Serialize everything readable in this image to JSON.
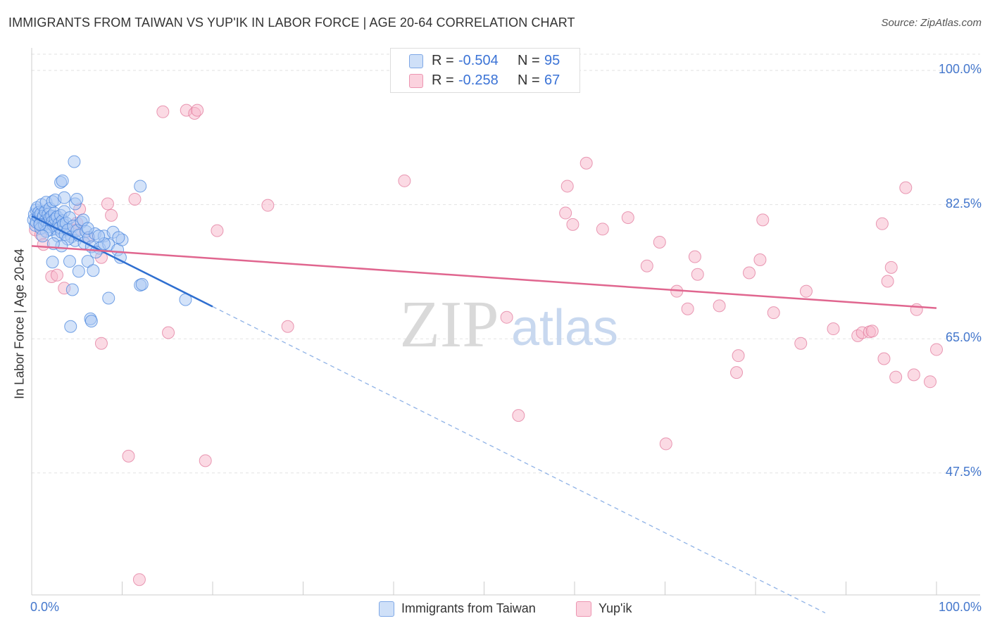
{
  "title": "IMMIGRANTS FROM TAIWAN VS YUP'IK IN LABOR FORCE | AGE 20-64 CORRELATION CHART",
  "source": "Source: ZipAtlas.com",
  "watermark": {
    "zip": "ZIP",
    "atlas": "atlas"
  },
  "stats": [
    {
      "r_label": "R =",
      "r": "-0.504",
      "n_label": "N =",
      "n": "95",
      "color": "#a9c8f3"
    },
    {
      "r_label": "R =",
      "r": "-0.258",
      "n_label": "N =",
      "n": "67",
      "color": "#f7b6c9"
    }
  ],
  "legend": [
    {
      "label": "Immigrants from Taiwan",
      "color": "#a9c8f3"
    },
    {
      "label": "Yup'ik",
      "color": "#f7b6c9"
    }
  ],
  "chart_data": {
    "type": "scatter",
    "title": "IMMIGRANTS FROM TAIWAN VS YUP'IK IN LABOR FORCE | AGE 20-64 CORRELATION CHART",
    "xlabel": "",
    "ylabel": "In Labor Force | Age 20-64",
    "xlim": [
      0,
      100
    ],
    "ylim": [
      31.6,
      102.2
    ],
    "x_tick_labels": [
      "0.0%",
      "100.0%"
    ],
    "y_ticks": [
      {
        "value": 100.0,
        "label": "100.0%"
      },
      {
        "value": 82.5,
        "label": "82.5%"
      },
      {
        "value": 65.0,
        "label": "65.0%"
      },
      {
        "value": 47.5,
        "label": "47.5%"
      }
    ],
    "grid": "horizontal dashed",
    "series": [
      {
        "name": "Immigrants from Taiwan",
        "color": "#a9c8f3",
        "stroke": "#4a86de",
        "trend": {
          "x0": 0,
          "y0": 81.0,
          "x1": 20,
          "y1": 69.2,
          "dashed_to_x": 87.7
        },
        "points": [
          [
            0.2,
            80.5
          ],
          [
            0.3,
            81.2
          ],
          [
            0.4,
            79.8
          ],
          [
            0.5,
            81.8
          ],
          [
            0.5,
            80.2
          ],
          [
            0.6,
            82.1
          ],
          [
            0.7,
            80.9
          ],
          [
            0.8,
            81.5
          ],
          [
            0.9,
            80.0
          ],
          [
            1.0,
            81.3
          ],
          [
            1.0,
            79.4
          ],
          [
            1.1,
            82.5
          ],
          [
            1.2,
            80.7
          ],
          [
            1.3,
            81.0
          ],
          [
            1.4,
            79.9
          ],
          [
            1.5,
            81.6
          ],
          [
            1.5,
            80.4
          ],
          [
            1.6,
            82.8
          ],
          [
            1.7,
            80.1
          ],
          [
            1.8,
            81.2
          ],
          [
            1.9,
            79.6
          ],
          [
            2.0,
            80.8
          ],
          [
            2.0,
            82.0
          ],
          [
            2.1,
            79.2
          ],
          [
            2.2,
            81.0
          ],
          [
            2.3,
            80.3
          ],
          [
            2.4,
            79.8
          ],
          [
            2.5,
            81.4
          ],
          [
            2.6,
            80.6
          ],
          [
            2.7,
            79.3
          ],
          [
            2.8,
            80.9
          ],
          [
            2.9,
            78.4
          ],
          [
            3.0,
            80.0
          ],
          [
            3.1,
            79.5
          ],
          [
            3.2,
            81.1
          ],
          [
            3.3,
            78.9
          ],
          [
            3.4,
            80.4
          ],
          [
            3.5,
            79.9
          ],
          [
            3.6,
            81.6
          ],
          [
            3.7,
            78.6
          ],
          [
            3.8,
            80.1
          ],
          [
            4.0,
            79.2
          ],
          [
            4.2,
            80.8
          ],
          [
            4.4,
            78.3
          ],
          [
            4.6,
            79.7
          ],
          [
            4.8,
            77.8
          ],
          [
            5.0,
            79.1
          ],
          [
            5.2,
            78.5
          ],
          [
            5.5,
            80.2
          ],
          [
            5.8,
            77.5
          ],
          [
            6.0,
            79.0
          ],
          [
            6.3,
            78.2
          ],
          [
            6.6,
            77.0
          ],
          [
            7.0,
            78.7
          ],
          [
            7.5,
            76.8
          ],
          [
            8.0,
            78.4
          ],
          [
            8.5,
            77.3
          ],
          [
            9.0,
            78.9
          ],
          [
            9.5,
            76.6
          ],
          [
            10.0,
            77.9
          ],
          [
            2.3,
            82.9
          ],
          [
            2.6,
            83.1
          ],
          [
            3.2,
            85.4
          ],
          [
            3.4,
            85.6
          ],
          [
            4.7,
            88.1
          ],
          [
            12.0,
            84.9
          ],
          [
            3.6,
            83.4
          ],
          [
            4.8,
            82.6
          ],
          [
            5.0,
            83.2
          ],
          [
            5.7,
            80.5
          ],
          [
            6.2,
            79.4
          ],
          [
            2.3,
            75.0
          ],
          [
            4.2,
            75.1
          ],
          [
            5.2,
            73.8
          ],
          [
            6.2,
            75.1
          ],
          [
            6.8,
            73.9
          ],
          [
            4.5,
            71.4
          ],
          [
            8.5,
            70.3
          ],
          [
            12.0,
            72.0
          ],
          [
            12.2,
            72.1
          ],
          [
            17.0,
            70.1
          ],
          [
            6.5,
            67.6
          ],
          [
            6.6,
            67.3
          ],
          [
            4.3,
            66.6
          ],
          [
            9.6,
            78.2
          ],
          [
            9.8,
            75.6
          ],
          [
            7.1,
            76.3
          ],
          [
            8.0,
            77.4
          ],
          [
            4.0,
            78.0
          ],
          [
            3.3,
            77.1
          ],
          [
            2.4,
            77.4
          ],
          [
            1.6,
            79.0
          ],
          [
            1.2,
            78.4
          ],
          [
            0.9,
            79.9
          ],
          [
            7.4,
            78.4
          ]
        ]
      },
      {
        "name": "Yup'ik",
        "color": "#f7b6c9",
        "stroke": "#e27a9c",
        "trend": {
          "x0": 0,
          "y0": 77.1,
          "x1": 100,
          "y1": 69.0
        },
        "points": [
          [
            0.4,
            79.2
          ],
          [
            1.0,
            78.6
          ],
          [
            1.3,
            77.3
          ],
          [
            2.2,
            73.1
          ],
          [
            2.8,
            73.3
          ],
          [
            3.6,
            71.6
          ],
          [
            5.0,
            80.1
          ],
          [
            5.3,
            81.9
          ],
          [
            4.9,
            79.2
          ],
          [
            6.3,
            78.2
          ],
          [
            7.7,
            75.6
          ],
          [
            8.4,
            82.6
          ],
          [
            8.8,
            81.1
          ],
          [
            11.4,
            83.2
          ],
          [
            14.5,
            94.6
          ],
          [
            17.1,
            94.8
          ],
          [
            18.0,
            94.4
          ],
          [
            18.3,
            94.8
          ],
          [
            20.5,
            79.1
          ],
          [
            7.7,
            64.4
          ],
          [
            15.1,
            65.8
          ],
          [
            10.7,
            49.7
          ],
          [
            19.2,
            49.1
          ],
          [
            11.9,
            33.6
          ],
          [
            26.1,
            82.4
          ],
          [
            28.3,
            66.6
          ],
          [
            41.2,
            85.6
          ],
          [
            52.5,
            67.8
          ],
          [
            53.8,
            55.0
          ],
          [
            59.2,
            84.9
          ],
          [
            59.0,
            81.4
          ],
          [
            59.8,
            79.9
          ],
          [
            61.3,
            87.9
          ],
          [
            63.1,
            79.3
          ],
          [
            65.9,
            80.8
          ],
          [
            68.0,
            74.5
          ],
          [
            69.4,
            77.6
          ],
          [
            70.1,
            51.3
          ],
          [
            71.3,
            71.2
          ],
          [
            72.5,
            68.9
          ],
          [
            73.3,
            75.7
          ],
          [
            73.6,
            73.4
          ],
          [
            76.0,
            69.3
          ],
          [
            77.9,
            60.6
          ],
          [
            78.1,
            62.8
          ],
          [
            79.3,
            73.6
          ],
          [
            80.5,
            75.3
          ],
          [
            80.8,
            80.5
          ],
          [
            82.0,
            68.4
          ],
          [
            85.0,
            64.4
          ],
          [
            85.6,
            71.2
          ],
          [
            88.6,
            66.3
          ],
          [
            91.3,
            65.4
          ],
          [
            91.8,
            65.8
          ],
          [
            92.6,
            65.9
          ],
          [
            92.9,
            66.0
          ],
          [
            94.0,
            80.0
          ],
          [
            94.2,
            62.4
          ],
          [
            94.6,
            72.5
          ],
          [
            95.0,
            74.3
          ],
          [
            95.5,
            60.0
          ],
          [
            96.6,
            84.7
          ],
          [
            97.5,
            60.3
          ],
          [
            97.8,
            68.8
          ],
          [
            99.3,
            59.4
          ],
          [
            100.0,
            63.6
          ],
          [
            41.0,
            99.6
          ]
        ]
      }
    ]
  }
}
